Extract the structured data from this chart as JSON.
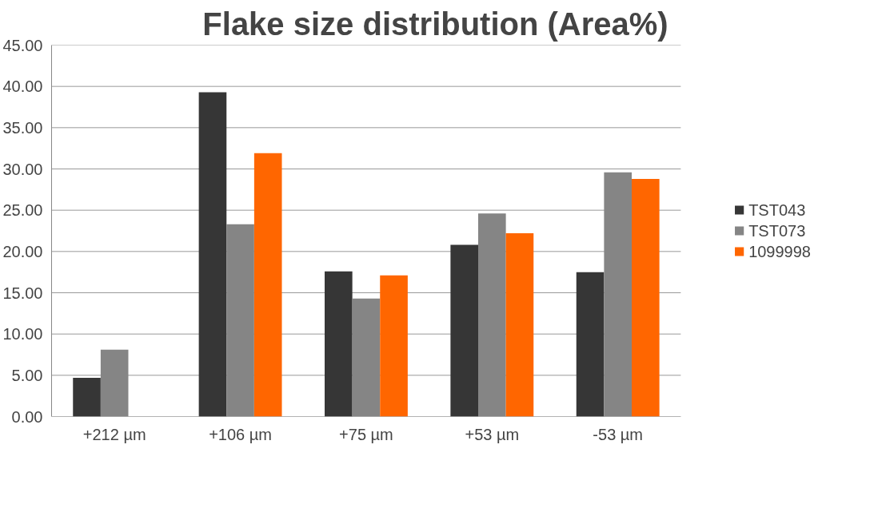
{
  "chart_data": {
    "type": "bar",
    "title": "Flake size distribution (Area%)",
    "categories": [
      "+212 µm",
      "+106 µm",
      "+75 µm",
      "+53 µm",
      "-53 µm"
    ],
    "series": [
      {
        "name": "TST043",
        "color": "#363636",
        "values": [
          4.7,
          39.3,
          17.6,
          20.8,
          17.5
        ]
      },
      {
        "name": "TST073",
        "color": "#858585",
        "values": [
          8.1,
          23.3,
          14.3,
          24.6,
          29.6
        ]
      },
      {
        "name": "1099998",
        "color": "#ff6600",
        "values": [
          null,
          31.9,
          17.1,
          22.2,
          28.8
        ]
      }
    ],
    "ylim": [
      0,
      45
    ],
    "yticks": [
      {
        "value": 0,
        "label": "0.00"
      },
      {
        "value": 5,
        "label": "5.00"
      },
      {
        "value": 10,
        "label": "10.00"
      },
      {
        "value": 15,
        "label": "15.00"
      },
      {
        "value": 20,
        "label": "20.00"
      },
      {
        "value": 25,
        "label": "25.00"
      },
      {
        "value": 30,
        "label": "30.00"
      },
      {
        "value": 35,
        "label": "35.00"
      },
      {
        "value": 40,
        "label": "40.00"
      },
      {
        "value": 45,
        "label": "45.00"
      }
    ],
    "grid": "y",
    "legend": "right"
  }
}
